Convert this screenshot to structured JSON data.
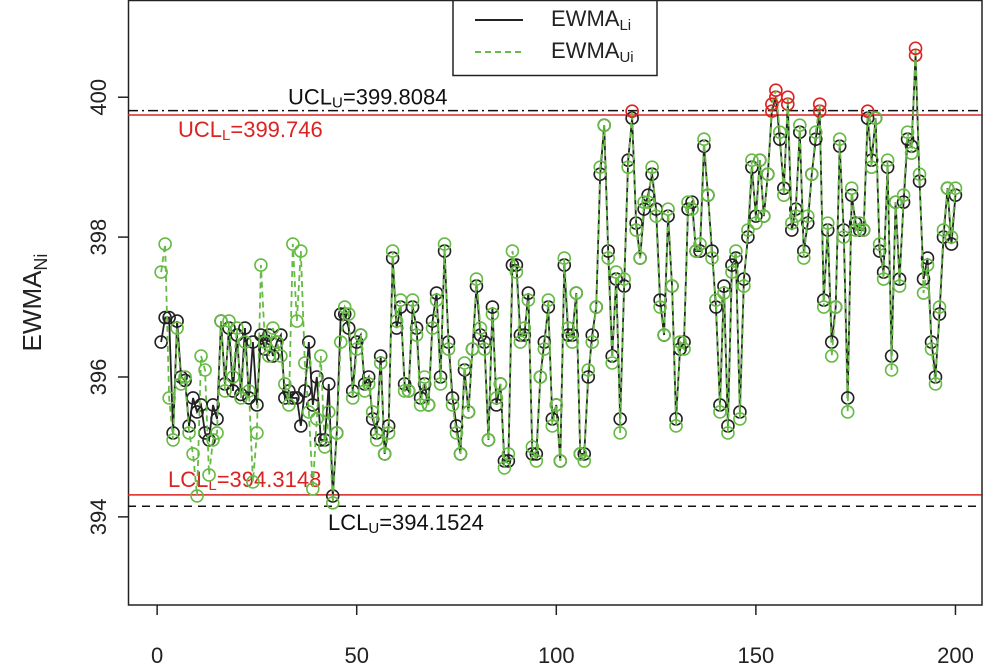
{
  "chart_data": {
    "type": "line",
    "y_label": {
      "text": "EWMA",
      "sub": "Ni"
    },
    "x": [
      1,
      2,
      3,
      4,
      5,
      6,
      7,
      8,
      9,
      10,
      11,
      12,
      13,
      14,
      15,
      16,
      17,
      18,
      19,
      20,
      21,
      22,
      23,
      24,
      25,
      26,
      27,
      28,
      29,
      30,
      31,
      32,
      33,
      34,
      35,
      36,
      37,
      38,
      39,
      40,
      41,
      42,
      43,
      44,
      45,
      46,
      47,
      48,
      49,
      50,
      51,
      52,
      53,
      54,
      55,
      56,
      57,
      58,
      59,
      60,
      61,
      62,
      63,
      64,
      65,
      66,
      67,
      68,
      69,
      70,
      71,
      72,
      73,
      74,
      75,
      76,
      77,
      78,
      79,
      80,
      81,
      82,
      83,
      84,
      85,
      86,
      87,
      88,
      89,
      90,
      91,
      92,
      93,
      94,
      95,
      96,
      97,
      98,
      99,
      100,
      101,
      102,
      103,
      104,
      105,
      106,
      107,
      108,
      109,
      110,
      111,
      112,
      113,
      114,
      115,
      116,
      117,
      118,
      119,
      120,
      121,
      122,
      123,
      124,
      125,
      126,
      127,
      128,
      129,
      130,
      131,
      132,
      133,
      134,
      135,
      136,
      137,
      138,
      139,
      140,
      141,
      142,
      143,
      144,
      145,
      146,
      147,
      148,
      149,
      150,
      151,
      152,
      153,
      154,
      155,
      156,
      157,
      158,
      159,
      160,
      161,
      162,
      163,
      164,
      165,
      166,
      167,
      168,
      169,
      170,
      171,
      172,
      173,
      174,
      175,
      176,
      177,
      178,
      179,
      180,
      181,
      182,
      183,
      184,
      185,
      186,
      187,
      188,
      189,
      190,
      191,
      192,
      193,
      194,
      195,
      196,
      197,
      198,
      199,
      200
    ],
    "series": [
      {
        "name": "EWMA",
        "sub": "Li",
        "color": "#222222",
        "dash": false,
        "values": [
          396.5,
          396.85,
          396.85,
          395.2,
          396.8,
          396.0,
          395.95,
          395.3,
          395.7,
          395.5,
          395.6,
          395.2,
          395.1,
          395.6,
          395.4,
          396.8,
          395.9,
          396.7,
          395.8,
          396.6,
          395.75,
          396.7,
          395.7,
          396.5,
          395.6,
          396.6,
          396.4,
          396.6,
          396.3,
          396.5,
          396.6,
          395.7,
          395.8,
          395.7,
          395.7,
          395.3,
          395.8,
          396.5,
          395.6,
          396.0,
          395.1,
          395.1,
          395.9,
          394.3,
          395.2,
          396.9,
          396.9,
          396.7,
          395.8,
          396.5,
          396.6,
          395.9,
          396.0,
          395.4,
          395.2,
          396.3,
          394.9,
          395.3,
          397.7,
          396.7,
          397.0,
          395.9,
          395.8,
          397.0,
          396.7,
          395.7,
          395.9,
          395.6,
          396.8,
          397.2,
          396.0,
          397.8,
          396.5,
          395.7,
          395.3,
          394.9,
          396.1,
          395.5,
          396.4,
          397.3,
          396.6,
          396.5,
          395.1,
          397.0,
          395.6,
          395.9,
          394.8,
          394.8,
          397.6,
          397.6,
          396.6,
          396.6,
          397.2,
          394.9,
          394.9,
          396.0,
          396.5,
          397.0,
          395.4,
          395.6,
          394.8,
          397.6,
          396.6,
          396.6,
          397.2,
          394.9,
          394.9,
          396.0,
          396.6,
          397.0,
          398.9,
          399.6,
          397.8,
          396.3,
          397.4,
          395.4,
          397.3,
          399.1,
          399.7,
          398.2,
          397.7,
          398.4,
          398.6,
          398.9,
          398.4,
          397.1,
          396.6,
          398.3,
          397.3,
          395.4,
          396.4,
          396.5,
          398.4,
          398.5,
          397.8,
          397.8,
          399.3,
          398.6,
          397.8,
          397.0,
          395.6,
          397.3,
          395.3,
          397.6,
          397.7,
          395.5,
          397.4,
          398.0,
          399.0,
          398.3,
          399.1,
          398.3,
          398.9,
          399.8,
          400.0,
          399.4,
          398.7,
          399.9,
          398.1,
          398.4,
          399.5,
          397.8,
          398.2,
          398.9,
          399.4,
          399.8,
          397.1,
          398.1,
          396.5,
          397.0,
          399.3,
          398.1,
          395.7,
          398.6,
          398.2,
          398.1,
          398.1,
          399.7,
          399.1,
          399.7,
          397.8,
          397.5,
          399.0,
          396.3,
          398.5,
          397.4,
          398.5,
          399.4,
          399.3,
          400.6,
          398.8,
          397.4,
          397.7,
          396.5,
          396.0,
          396.9,
          398.0,
          398.7,
          397.9,
          398.6
        ]
      },
      {
        "name": "EWMA",
        "sub": "Ui",
        "color": "#66bb44",
        "dash": true,
        "values": [
          397.5,
          397.9,
          395.7,
          395.1,
          396.7,
          395.9,
          396.0,
          395.2,
          394.9,
          394.3,
          396.3,
          396.1,
          394.6,
          395.1,
          395.2,
          396.8,
          395.8,
          396.8,
          396.0,
          396.7,
          395.7,
          396.5,
          395.8,
          394.5,
          395.2,
          397.6,
          396.5,
          396.3,
          396.7,
          396.5,
          396.3,
          395.9,
          395.6,
          397.9,
          396.8,
          397.8,
          396.2,
          395.5,
          394.4,
          395.4,
          396.3,
          395.0,
          395.5,
          394.2,
          395.2,
          396.5,
          397.0,
          396.9,
          395.7,
          396.4,
          396.6,
          395.8,
          395.9,
          395.5,
          395.1,
          396.2,
          394.9,
          395.2,
          397.8,
          396.8,
          397.1,
          395.8,
          395.8,
          397.1,
          396.6,
          395.6,
          396.0,
          395.6,
          396.7,
          397.1,
          395.9,
          397.9,
          396.4,
          395.6,
          395.2,
          394.9,
          396.2,
          395.5,
          396.4,
          397.4,
          396.7,
          396.4,
          395.1,
          396.9,
          395.7,
          395.9,
          394.7,
          394.9,
          397.8,
          397.5,
          396.5,
          396.7,
          397.1,
          395.0,
          394.8,
          396.0,
          396.4,
          397.1,
          395.3,
          395.6,
          394.8,
          397.7,
          396.7,
          396.5,
          397.2,
          394.9,
          394.8,
          396.1,
          396.5,
          397.0,
          399.0,
          399.6,
          397.7,
          396.2,
          397.5,
          395.2,
          397.4,
          399.0,
          399.8,
          398.1,
          397.7,
          398.5,
          398.5,
          399.0,
          398.3,
          397.0,
          396.6,
          398.4,
          397.3,
          395.3,
          396.5,
          396.4,
          398.5,
          398.4,
          397.8,
          397.9,
          399.4,
          398.6,
          397.7,
          397.1,
          395.5,
          397.2,
          395.2,
          397.5,
          397.8,
          395.4,
          397.3,
          398.1,
          399.1,
          398.2,
          399.1,
          398.3,
          398.9,
          399.9,
          400.1,
          399.5,
          398.6,
          400.0,
          398.2,
          398.3,
          399.6,
          397.7,
          398.3,
          398.9,
          399.5,
          399.9,
          397.0,
          398.2,
          396.3,
          397.0,
          399.4,
          398.0,
          395.5,
          398.7,
          398.1,
          398.2,
          398.1,
          399.8,
          399.0,
          399.7,
          397.9,
          397.4,
          399.1,
          396.1,
          398.5,
          397.3,
          398.6,
          399.5,
          399.2,
          400.7,
          398.9,
          397.2,
          397.6,
          396.4,
          395.9,
          397.0,
          398.1,
          398.7,
          398.0,
          398.7
        ]
      }
    ],
    "control_lines": [
      {
        "name": "UCL",
        "sub": "U",
        "text": "=399.8084",
        "value": 399.8084,
        "color": "#111111",
        "style": "dashdot"
      },
      {
        "name": "UCL",
        "sub": "L",
        "text": "=399.746",
        "value": 399.746,
        "color": "#dd2222",
        "style": "solid"
      },
      {
        "name": "LCL",
        "sub": "L",
        "text": "=394.3148",
        "value": 394.3148,
        "color": "#dd2222",
        "style": "solid"
      },
      {
        "name": "LCL",
        "sub": "U",
        "text": "=394.1524",
        "value": 394.1524,
        "color": "#111111",
        "style": "dashed"
      }
    ],
    "out_color": "#dd2222",
    "xlim": [
      -7.3,
      206.9
    ],
    "ylim": [
      392.74,
      401.39
    ],
    "xticks": [
      0,
      50,
      100,
      150,
      200
    ],
    "yticks": [
      394,
      396,
      398,
      400
    ],
    "legend": "top"
  }
}
